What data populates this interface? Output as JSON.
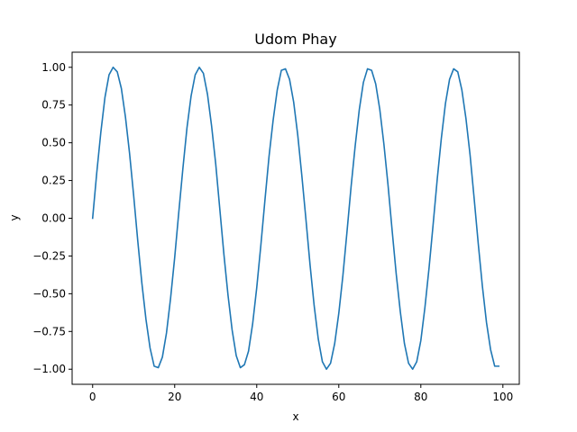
{
  "chart_data": {
    "type": "line",
    "title": "Udom Phay",
    "xlabel": "x",
    "ylabel": "y",
    "xlim": [
      -5,
      104
    ],
    "ylim": [
      -1.1,
      1.1
    ],
    "xticks": [
      0,
      20,
      40,
      60,
      80,
      100
    ],
    "xtick_labels": [
      "0",
      "20",
      "40",
      "60",
      "80",
      "100"
    ],
    "yticks": [
      -1.0,
      -0.75,
      -0.5,
      -0.25,
      0.0,
      0.25,
      0.5,
      0.75,
      1.0
    ],
    "ytick_labels": [
      "−1.00",
      "−0.75",
      "−0.50",
      "−0.25",
      "0.00",
      "0.25",
      "0.50",
      "0.75",
      "1.00"
    ],
    "grid": false,
    "legend": "none",
    "series": [
      {
        "color": "#1f77b4",
        "x": [
          0,
          1,
          2,
          3,
          4,
          5,
          6,
          7,
          8,
          9,
          10,
          11,
          12,
          13,
          14,
          15,
          16,
          17,
          18,
          19,
          20,
          21,
          22,
          23,
          24,
          25,
          26,
          27,
          28,
          29,
          30,
          31,
          32,
          33,
          34,
          35,
          36,
          37,
          38,
          39,
          40,
          41,
          42,
          43,
          44,
          45,
          46,
          47,
          48,
          49,
          50,
          51,
          52,
          53,
          54,
          55,
          56,
          57,
          58,
          59,
          60,
          61,
          62,
          63,
          64,
          65,
          66,
          67,
          68,
          69,
          70,
          71,
          72,
          73,
          74,
          75,
          76,
          77,
          78,
          79,
          80,
          81,
          82,
          83,
          84,
          85,
          86,
          87,
          88,
          89,
          90,
          91,
          92,
          93,
          94,
          95,
          96,
          97,
          98,
          99
        ],
        "y": [
          0.0,
          0.3,
          0.57,
          0.8,
          0.95,
          1.0,
          0.97,
          0.86,
          0.67,
          0.43,
          0.15,
          -0.15,
          -0.43,
          -0.67,
          -0.86,
          -0.98,
          -0.99,
          -0.92,
          -0.76,
          -0.53,
          -0.26,
          0.04,
          0.33,
          0.6,
          0.81,
          0.95,
          1.0,
          0.96,
          0.82,
          0.61,
          0.36,
          0.06,
          -0.24,
          -0.51,
          -0.74,
          -0.91,
          -0.99,
          -0.97,
          -0.88,
          -0.7,
          -0.46,
          -0.18,
          0.12,
          0.41,
          0.65,
          0.85,
          0.98,
          0.99,
          0.92,
          0.77,
          0.55,
          0.28,
          -0.01,
          -0.31,
          -0.58,
          -0.8,
          -0.95,
          -1.0,
          -0.96,
          -0.83,
          -0.63,
          -0.38,
          -0.09,
          0.21,
          0.48,
          0.72,
          0.9,
          0.99,
          0.98,
          0.89,
          0.72,
          0.49,
          0.22,
          -0.08,
          -0.37,
          -0.62,
          -0.83,
          -0.96,
          -1.0,
          -0.95,
          -0.81,
          -0.59,
          -0.33,
          -0.04,
          0.26,
          0.53,
          0.76,
          0.92,
          0.99,
          0.97,
          0.85,
          0.66,
          0.42,
          0.13,
          -0.17,
          -0.45,
          -0.69,
          -0.87,
          -0.98,
          -0.98
        ]
      }
    ]
  }
}
